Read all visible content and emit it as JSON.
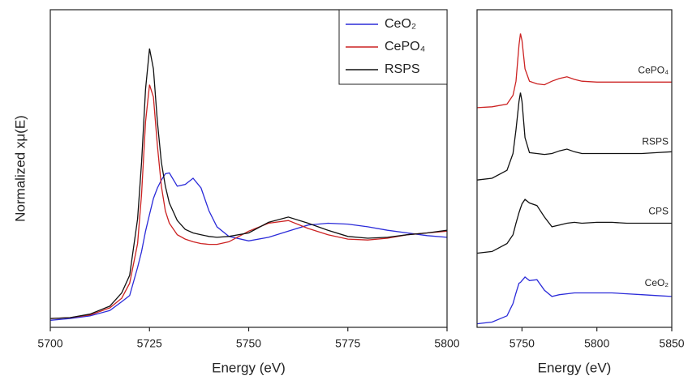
{
  "chart_data": [
    {
      "type": "line",
      "x_label": "Energy (eV)",
      "y_label": "Normalized xμ(E)",
      "xlim": [
        5700,
        5800
      ],
      "xticks": [
        5700,
        5725,
        5750,
        5775,
        5800
      ],
      "ylim": [
        -0.1,
        3.5
      ],
      "legend": "upper right",
      "x": [
        5700,
        5705,
        5710,
        5715,
        5718,
        5720,
        5722,
        5723,
        5724,
        5725,
        5726,
        5727,
        5728,
        5729,
        5730,
        5732,
        5734,
        5736,
        5738,
        5740,
        5742,
        5745,
        5750,
        5755,
        5760,
        5765,
        5770,
        5775,
        5780,
        5785,
        5790,
        5795,
        5800
      ],
      "series": [
        {
          "name": "CeO₂",
          "color": "#2b2bd9",
          "values": [
            -0.02,
            0.0,
            0.03,
            0.09,
            0.19,
            0.26,
            0.58,
            0.76,
            0.99,
            1.18,
            1.36,
            1.48,
            1.57,
            1.64,
            1.65,
            1.5,
            1.52,
            1.59,
            1.48,
            1.22,
            1.04,
            0.93,
            0.88,
            0.92,
            0.99,
            1.06,
            1.08,
            1.07,
            1.04,
            1.0,
            0.97,
            0.94,
            0.92
          ]
        },
        {
          "name": "CePO₄",
          "color": "#cc2222",
          "values": [
            0.0,
            0.01,
            0.04,
            0.12,
            0.23,
            0.4,
            0.85,
            1.41,
            2.23,
            2.65,
            2.51,
            1.96,
            1.5,
            1.22,
            1.08,
            0.95,
            0.9,
            0.87,
            0.85,
            0.84,
            0.84,
            0.87,
            0.99,
            1.08,
            1.11,
            1.02,
            0.95,
            0.9,
            0.89,
            0.91,
            0.95,
            0.97,
            0.99
          ]
        },
        {
          "name": "RSPS",
          "color": "#111111",
          "values": [
            0.0,
            0.01,
            0.05,
            0.14,
            0.29,
            0.49,
            1.13,
            1.77,
            2.6,
            3.06,
            2.83,
            2.23,
            1.77,
            1.5,
            1.31,
            1.11,
            1.01,
            0.97,
            0.95,
            0.93,
            0.92,
            0.93,
            0.97,
            1.09,
            1.15,
            1.08,
            1.0,
            0.93,
            0.91,
            0.92,
            0.95,
            0.97,
            1.0
          ]
        }
      ]
    },
    {
      "type": "line",
      "x_label": "Energy (eV)",
      "xlim": [
        5720,
        5850
      ],
      "xticks": [
        5750,
        5800,
        5850
      ],
      "ylim": [
        0,
        3.6
      ],
      "x": [
        5720,
        5730,
        5740,
        5744,
        5746,
        5748,
        5749,
        5750,
        5752,
        5755,
        5760,
        5765,
        5770,
        5775,
        5780,
        5785,
        5790,
        5800,
        5810,
        5820,
        5830,
        5840,
        5850
      ],
      "series": [
        {
          "name": "CePO₄",
          "color": "#cc2222",
          "values": [
            2.49,
            2.5,
            2.53,
            2.63,
            2.79,
            3.2,
            3.33,
            3.25,
            2.93,
            2.79,
            2.76,
            2.75,
            2.79,
            2.82,
            2.84,
            2.81,
            2.79,
            2.78,
            2.78,
            2.78,
            2.78,
            2.78,
            2.78
          ]
        },
        {
          "name": "RSPS",
          "color": "#111111",
          "values": [
            1.67,
            1.69,
            1.78,
            1.97,
            2.24,
            2.56,
            2.66,
            2.56,
            2.15,
            1.98,
            1.97,
            1.96,
            1.97,
            2.0,
            2.02,
            1.99,
            1.97,
            1.97,
            1.97,
            1.97,
            1.97,
            1.98,
            1.99
          ]
        },
        {
          "name": "CPS",
          "color": "#111111",
          "values": [
            0.84,
            0.86,
            0.95,
            1.05,
            1.18,
            1.3,
            1.35,
            1.4,
            1.45,
            1.41,
            1.38,
            1.25,
            1.14,
            1.16,
            1.18,
            1.19,
            1.18,
            1.19,
            1.19,
            1.18,
            1.18,
            1.18,
            1.18
          ]
        },
        {
          "name": "CeO₂",
          "color": "#2b2bd9",
          "values": [
            0.04,
            0.06,
            0.13,
            0.27,
            0.39,
            0.5,
            0.51,
            0.53,
            0.57,
            0.53,
            0.54,
            0.42,
            0.35,
            0.37,
            0.38,
            0.39,
            0.39,
            0.39,
            0.39,
            0.38,
            0.37,
            0.36,
            0.35
          ]
        }
      ]
    }
  ]
}
